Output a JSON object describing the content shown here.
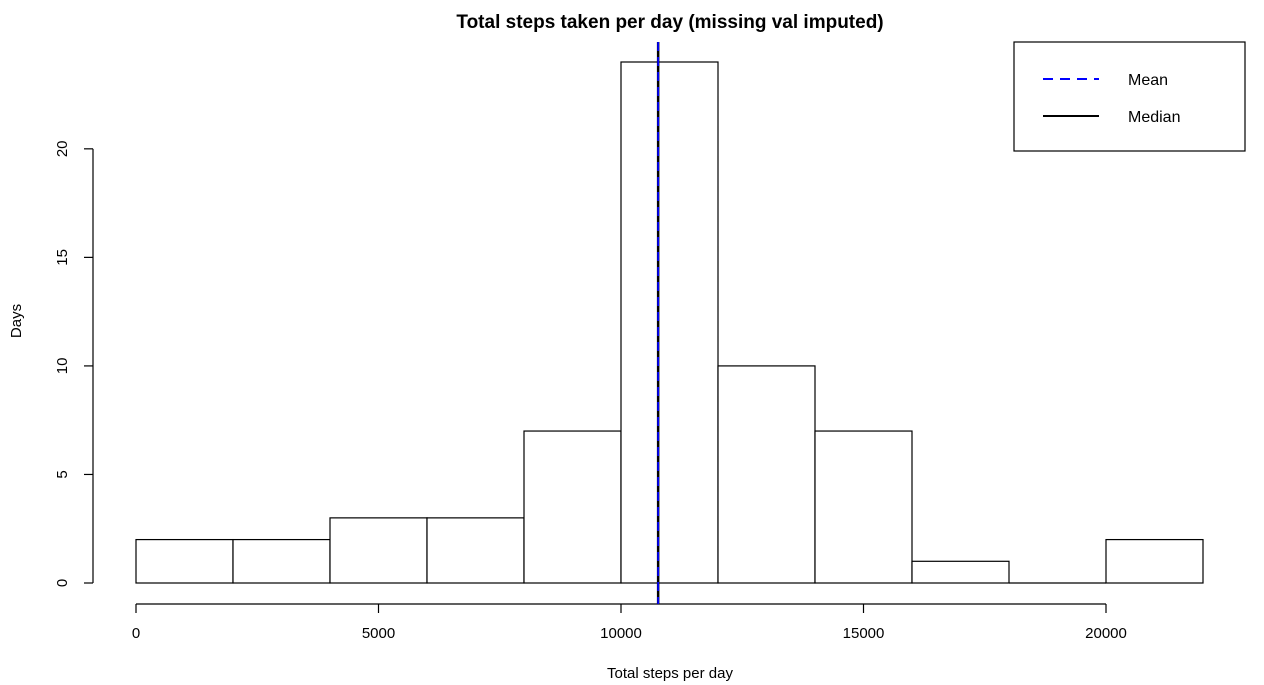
{
  "chart_data": {
    "type": "bar",
    "title": "Total steps taken per day (missing val imputed)",
    "xlabel": "Total steps per day",
    "ylabel": "Days",
    "bins": [
      {
        "start": 0,
        "end": 2000,
        "count": 2
      },
      {
        "start": 2000,
        "end": 4000,
        "count": 2
      },
      {
        "start": 4000,
        "end": 6000,
        "count": 3
      },
      {
        "start": 6000,
        "end": 8000,
        "count": 3
      },
      {
        "start": 8000,
        "end": 10000,
        "count": 7
      },
      {
        "start": 10000,
        "end": 12000,
        "count": 24
      },
      {
        "start": 12000,
        "end": 14000,
        "count": 10
      },
      {
        "start": 14000,
        "end": 16000,
        "count": 7
      },
      {
        "start": 16000,
        "end": 18000,
        "count": 1
      },
      {
        "start": 18000,
        "end": 20000,
        "count": 0
      },
      {
        "start": 20000,
        "end": 22000,
        "count": 2
      }
    ],
    "xlim": [
      0,
      22000
    ],
    "ylim": [
      0,
      24
    ],
    "xticks": [
      0,
      5000,
      10000,
      15000,
      20000
    ],
    "yticks": [
      0,
      5,
      10,
      15,
      20
    ],
    "mean": 10766,
    "median": 10766,
    "legend": {
      "position": "top-right",
      "entries": [
        {
          "label": "Mean",
          "color": "#0000ff",
          "style": "dashed"
        },
        {
          "label": "Median",
          "color": "#000000",
          "style": "solid"
        }
      ]
    },
    "grid": false
  }
}
